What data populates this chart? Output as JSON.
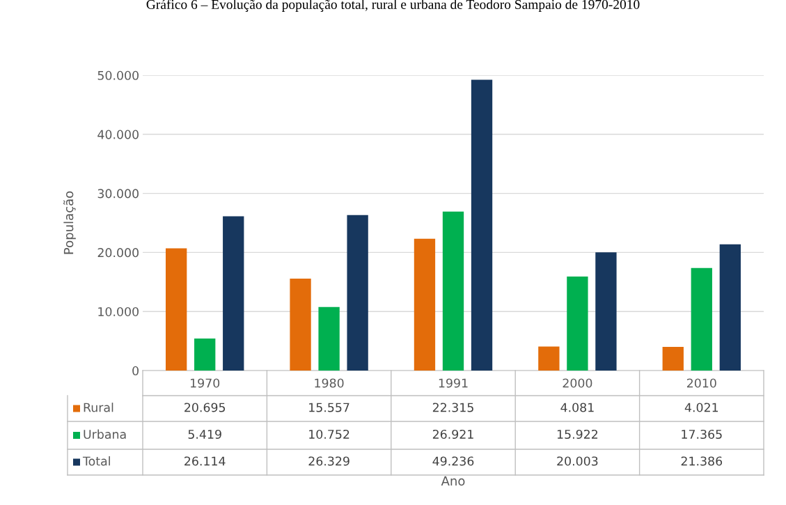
{
  "chart_data": {
    "type": "bar",
    "title": "Gráfico 6 – Evolução da população total, rural e urbana de Teodoro Sampaio de 1970-2010",
    "annotations": [
      "Ano"
    ],
    "ylabel": "População",
    "categories": [
      "1970",
      "1980",
      "1991",
      "2000",
      "2010"
    ],
    "series": [
      {
        "name": "Rural",
        "color": "#e36c0a",
        "values": [
          20695,
          15557,
          22315,
          4081,
          4021
        ],
        "value_labels": [
          "20.695",
          "15.557",
          "22.315",
          "4.081",
          "4.021"
        ]
      },
      {
        "name": "Urbana",
        "color": "#00b050",
        "values": [
          5419,
          10752,
          26921,
          15922,
          17365
        ],
        "value_labels": [
          "5.419",
          "10.752",
          "26.921",
          "15.922",
          "17.365"
        ]
      },
      {
        "name": "Total",
        "color": "#17375e",
        "values": [
          26114,
          26329,
          49236,
          20003,
          21386
        ],
        "value_labels": [
          "26.114",
          "26.329",
          "49.236",
          "20.003",
          "21.386"
        ]
      }
    ],
    "ylim": [
      0,
      50000
    ],
    "yticks": [
      0,
      {
        "value": 10000,
        "label": "10.000"
      },
      {
        "value": 20000,
        "label": "20.000"
      },
      {
        "value": 30000,
        "label": "30.000"
      },
      {
        "value": 40000,
        "label": "40.000"
      },
      {
        "value": 50000,
        "label": "50.000"
      }
    ],
    "grid": "y",
    "legend": "bottom"
  }
}
